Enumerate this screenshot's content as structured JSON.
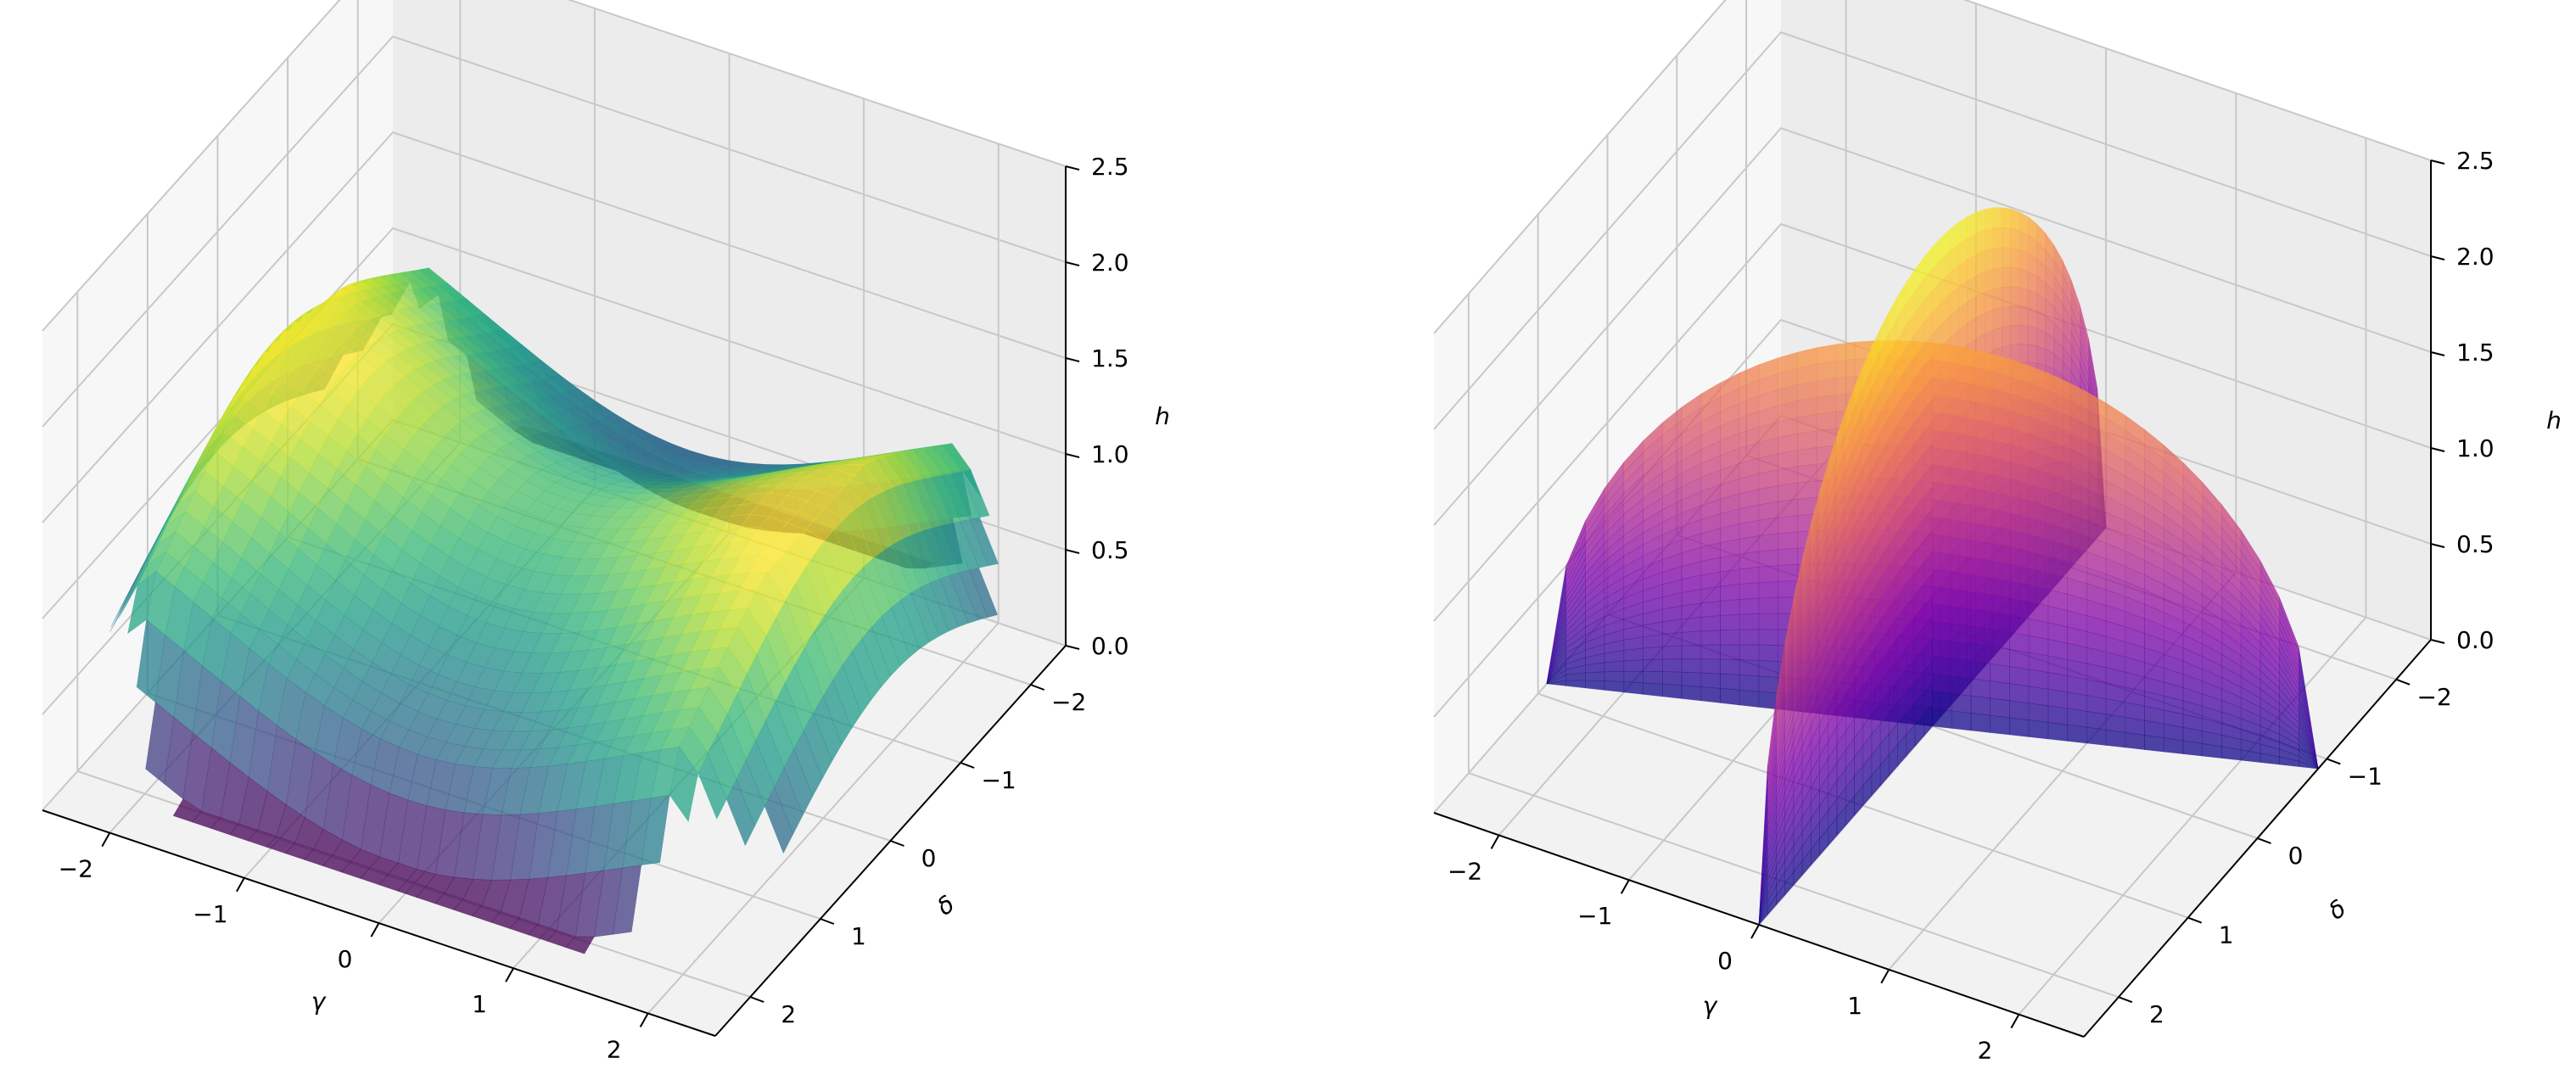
{
  "chart_data": [
    {
      "type": "surface3d",
      "title": "",
      "xlabel": "γ",
      "ylabel": "δ",
      "zlabel": "h",
      "xlim": [
        -2.5,
        2.5
      ],
      "ylim": [
        -2.5,
        2.5
      ],
      "zlim": [
        0,
        2.5
      ],
      "xticks": [
        -2,
        -1,
        0,
        1,
        2
      ],
      "yticks": [
        -2,
        -1,
        0,
        1,
        2
      ],
      "zticks": [
        0.0,
        0.5,
        1.0,
        1.5,
        2.0,
        2.5
      ],
      "xtick_labels": [
        "−2",
        "−1",
        "0",
        "1",
        "2"
      ],
      "ytick_labels": [
        "−2",
        "−1",
        "0",
        "1",
        "2"
      ],
      "ztick_labels": [
        "0.0",
        "0.5",
        "1.0",
        "1.5",
        "2.0",
        "2.5"
      ],
      "colormap": "viridis",
      "surface_alpha": 0.75,
      "grid": true,
      "surface": {
        "description": "saddle-like surface, height near 1.0-1.5 on ridges along both axes, with vertical walls near the square edges",
        "z_at_center": 1.2,
        "z_at_ridge_ends": 1.5
      }
    },
    {
      "type": "surface3d",
      "title": "",
      "xlabel": "γ",
      "ylabel": "δ",
      "zlabel": "h",
      "xlim": [
        -2.5,
        2.5
      ],
      "ylim": [
        -2.5,
        2.5
      ],
      "zlim": [
        0,
        2.5
      ],
      "xticks": [
        -2,
        -1,
        0,
        1,
        2
      ],
      "yticks": [
        -2,
        -1,
        0,
        1,
        2
      ],
      "zticks": [
        0.0,
        0.5,
        1.0,
        1.5,
        2.0,
        2.5
      ],
      "xtick_labels": [
        "−2",
        "−1",
        "0",
        "1",
        "2"
      ],
      "ytick_labels": [
        "−2",
        "−1",
        "0",
        "1",
        "2"
      ],
      "ztick_labels": [
        "0.0",
        "0.5",
        "1.0",
        "1.5",
        "2.0",
        "2.5"
      ],
      "colormap": "plasma",
      "surface_alpha": 0.75,
      "grid": true,
      "surface": {
        "description": "two vertical half-disc sheets: one in the plane δ = -γ·0.2 spanning the full γ range, one in the plane γ = 0 spanning the full δ range",
        "sheet_a_peak_h": 2.0,
        "sheet_b_peak_h": 2.5
      }
    }
  ]
}
